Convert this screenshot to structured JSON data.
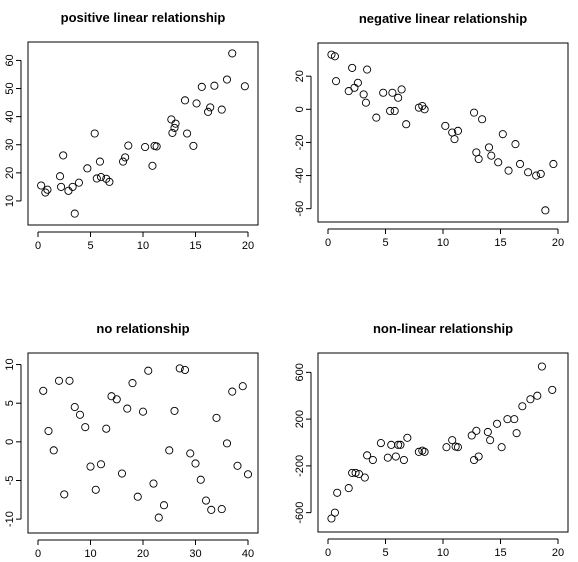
{
  "chart_data": [
    {
      "type": "scatter",
      "title": "positive linear relationship",
      "xlim": [
        0,
        20
      ],
      "ylim": [
        5,
        63
      ],
      "xticks": [
        "0",
        "5",
        "10",
        "15",
        "20"
      ],
      "yticks": [
        "10",
        "20",
        "30",
        "40",
        "50",
        "60"
      ],
      "points": [
        [
          0.3,
          15.5
        ],
        [
          0.7,
          13
        ],
        [
          0.9,
          14
        ],
        [
          2.1,
          18.8
        ],
        [
          2.2,
          15
        ],
        [
          2.4,
          26.2
        ],
        [
          2.9,
          13.6
        ],
        [
          3.3,
          15
        ],
        [
          3.5,
          5.5
        ],
        [
          3.9,
          16.5
        ],
        [
          4.7,
          21.6
        ],
        [
          5.4,
          34
        ],
        [
          5.6,
          18
        ],
        [
          5.9,
          24
        ],
        [
          6,
          18.5
        ],
        [
          6.5,
          17.9
        ],
        [
          6.8,
          16.8
        ],
        [
          8.1,
          24
        ],
        [
          8.3,
          25.5
        ],
        [
          8.6,
          29.7
        ],
        [
          10.2,
          29.2
        ],
        [
          10.9,
          22.5
        ],
        [
          11.1,
          29.6
        ],
        [
          11.3,
          29.4
        ],
        [
          12.7,
          39
        ],
        [
          12.8,
          34.2
        ],
        [
          13,
          36
        ],
        [
          13.1,
          37.5
        ],
        [
          14,
          45.8
        ],
        [
          14.2,
          34
        ],
        [
          14.8,
          29.6
        ],
        [
          15.1,
          44.7
        ],
        [
          15.6,
          50.6
        ],
        [
          16.2,
          41.7
        ],
        [
          16.4,
          43.3
        ],
        [
          16.8,
          51
        ],
        [
          17.5,
          42.5
        ],
        [
          18,
          53.2
        ],
        [
          18.5,
          62.5
        ],
        [
          19.7,
          50.8
        ]
      ]
    },
    {
      "type": "scatter",
      "title": "negative linear relationship",
      "xlim": [
        0,
        20
      ],
      "ylim": [
        -62,
        34
      ],
      "xticks": [
        "0",
        "5",
        "10",
        "15",
        "20"
      ],
      "yticks": [
        "-60",
        "-40",
        "-20",
        "0",
        "20"
      ],
      "points": [
        [
          0.3,
          33
        ],
        [
          0.6,
          32
        ],
        [
          0.7,
          17
        ],
        [
          1.8,
          11
        ],
        [
          2.1,
          25
        ],
        [
          2.3,
          13
        ],
        [
          2.6,
          16
        ],
        [
          3.1,
          9
        ],
        [
          3.3,
          4
        ],
        [
          3.4,
          24
        ],
        [
          4.2,
          -5
        ],
        [
          4.8,
          10
        ],
        [
          5.4,
          -1
        ],
        [
          5.6,
          10
        ],
        [
          5.8,
          -1
        ],
        [
          6.1,
          7
        ],
        [
          6.4,
          12
        ],
        [
          6.8,
          -9
        ],
        [
          7.9,
          1
        ],
        [
          8.2,
          2
        ],
        [
          8.4,
          0
        ],
        [
          10.2,
          -10
        ],
        [
          10.8,
          -14
        ],
        [
          11,
          -18
        ],
        [
          11.3,
          -13
        ],
        [
          12.7,
          -2
        ],
        [
          12.9,
          -26
        ],
        [
          13.1,
          -30
        ],
        [
          13.4,
          -6
        ],
        [
          14,
          -23
        ],
        [
          14.2,
          -28
        ],
        [
          14.8,
          -32
        ],
        [
          15.2,
          -15
        ],
        [
          15.7,
          -37
        ],
        [
          16.3,
          -21
        ],
        [
          16.7,
          -33
        ],
        [
          17.4,
          -38
        ],
        [
          18.1,
          -40
        ],
        [
          18.5,
          -39
        ],
        [
          18.9,
          -61
        ],
        [
          19.6,
          -33
        ]
      ]
    },
    {
      "type": "scatter",
      "title": "no relationship",
      "xlim": [
        0,
        40
      ],
      "ylim": [
        -10.5,
        10.2
      ],
      "xticks": [
        "0",
        "10",
        "20",
        "30",
        "40"
      ],
      "yticks": [
        "-10",
        "-5",
        "0",
        "5",
        "10"
      ],
      "points": [
        [
          1,
          6.6
        ],
        [
          2,
          1.4
        ],
        [
          3,
          -1.1
        ],
        [
          4,
          7.9
        ],
        [
          5,
          -6.8
        ],
        [
          6,
          7.9
        ],
        [
          7,
          4.5
        ],
        [
          8,
          3.5
        ],
        [
          9,
          1.9
        ],
        [
          10,
          -3.2
        ],
        [
          11,
          -6.2
        ],
        [
          12,
          -2.9
        ],
        [
          13,
          1.7
        ],
        [
          14,
          5.9
        ],
        [
          15,
          5.5
        ],
        [
          16,
          -4.1
        ],
        [
          17,
          4.3
        ],
        [
          18,
          7.6
        ],
        [
          19,
          -7.1
        ],
        [
          20,
          3.9
        ],
        [
          21,
          9.2
        ],
        [
          22,
          -5.4
        ],
        [
          23,
          -9.8
        ],
        [
          24,
          -8.2
        ],
        [
          25,
          -1.1
        ],
        [
          26,
          4
        ],
        [
          27,
          9.5
        ],
        [
          28,
          9.3
        ],
        [
          29,
          -1.5
        ],
        [
          30,
          -2.8
        ],
        [
          31,
          -4.9
        ],
        [
          32,
          -7.6
        ],
        [
          33,
          -8.8
        ],
        [
          34,
          3.1
        ],
        [
          35,
          -8.7
        ],
        [
          36,
          -0.2
        ],
        [
          37,
          6.5
        ],
        [
          38,
          -3.1
        ],
        [
          39,
          7.2
        ],
        [
          40,
          -4.2
        ]
      ]
    },
    {
      "type": "scatter",
      "title": "non-linear relationship",
      "xlim": [
        0,
        20
      ],
      "ylim": [
        -680,
        680
      ],
      "xticks": [
        "0",
        "5",
        "10",
        "15",
        "20"
      ],
      "yticks": [
        "-600",
        "-200",
        "200",
        "600"
      ],
      "points": [
        [
          0.3,
          -650
        ],
        [
          0.6,
          -600
        ],
        [
          0.8,
          -430
        ],
        [
          1.8,
          -390
        ],
        [
          2.1,
          -260
        ],
        [
          2.4,
          -260
        ],
        [
          2.7,
          -270
        ],
        [
          3.2,
          -300
        ],
        [
          3.4,
          -110
        ],
        [
          3.9,
          -150
        ],
        [
          4.6,
          -5
        ],
        [
          5.2,
          -130
        ],
        [
          5.5,
          -20
        ],
        [
          5.9,
          -120
        ],
        [
          6.1,
          -20
        ],
        [
          6.3,
          -20
        ],
        [
          6.6,
          -150
        ],
        [
          6.9,
          40
        ],
        [
          7.9,
          -80
        ],
        [
          8.2,
          -70
        ],
        [
          8.4,
          -80
        ],
        [
          10.3,
          -40
        ],
        [
          10.8,
          20
        ],
        [
          11.1,
          -35
        ],
        [
          11.3,
          -40
        ],
        [
          12.5,
          60
        ],
        [
          12.7,
          -150
        ],
        [
          12.9,
          100
        ],
        [
          13.1,
          -120
        ],
        [
          13.9,
          90
        ],
        [
          14.1,
          20
        ],
        [
          14.7,
          160
        ],
        [
          15.1,
          -40
        ],
        [
          15.6,
          200
        ],
        [
          16.2,
          200
        ],
        [
          16.4,
          80
        ],
        [
          16.9,
          310
        ],
        [
          17.6,
          370
        ],
        [
          18.2,
          400
        ],
        [
          18.6,
          650
        ],
        [
          19.5,
          450
        ]
      ]
    }
  ]
}
